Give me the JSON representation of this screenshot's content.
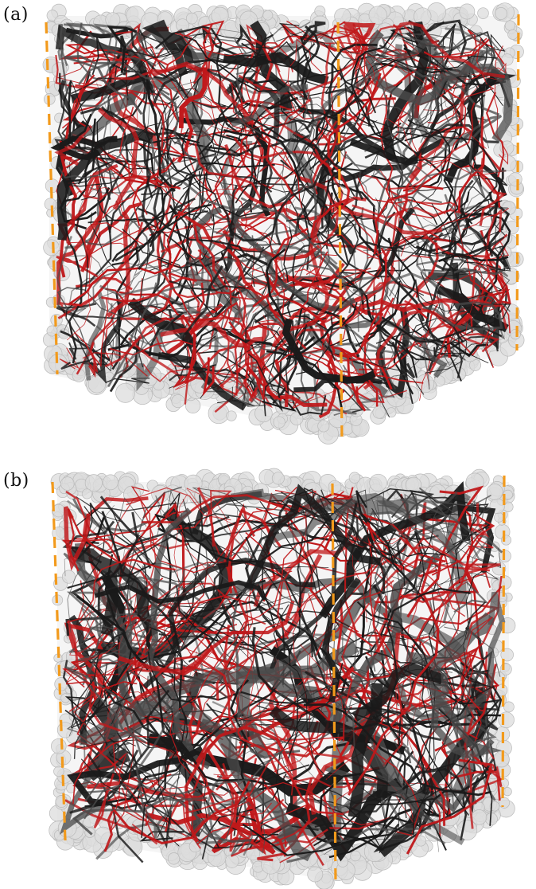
{
  "panels": [
    {
      "id": "a",
      "label": "(a)"
    },
    {
      "id": "b",
      "label": "(b)"
    }
  ],
  "colors": {
    "background": "#ffffff",
    "grain_fill": "#dcdcdc",
    "grain_stroke": "#b9b9b9",
    "network_dark": "#1a1a1a",
    "network_gray": "#4a4a4a",
    "network_red": "#c0181a",
    "marker_orange": "#f29a1c"
  }
}
